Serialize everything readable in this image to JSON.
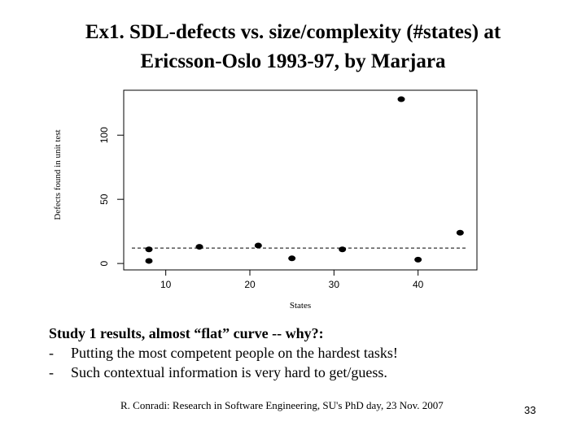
{
  "slide": {
    "title_line1": "Ex1. SDL-defects vs. size/complexity (#states) at",
    "title_line2": "Ericsson-Oslo 1993-97, by Marjara",
    "heading": "Study 1 results, almost “flat” curve -- why?:",
    "bullets": [
      "Putting the most competent people on the hardest tasks!",
      "Such contextual information is very hard to get/guess."
    ],
    "bullet_marker": "-",
    "footer": "R. Conradi: Research in Software Engineering, SU's PhD day, 23 Nov. 2007",
    "page_number": "33"
  },
  "chart_data": {
    "type": "scatter",
    "xlabel": "States",
    "ylabel": "Defects found in unit test",
    "xlim": [
      5,
      47
    ],
    "ylim": [
      -5,
      135
    ],
    "x_ticks": [
      10,
      20,
      30,
      40
    ],
    "y_ticks": [
      0,
      50,
      100
    ],
    "grid": false,
    "points": [
      {
        "x": 8,
        "y": 11
      },
      {
        "x": 8,
        "y": 2
      },
      {
        "x": 14,
        "y": 13
      },
      {
        "x": 21,
        "y": 14
      },
      {
        "x": 25,
        "y": 4
      },
      {
        "x": 31,
        "y": 11
      },
      {
        "x": 38,
        "y": 128
      },
      {
        "x": 40,
        "y": 3
      },
      {
        "x": 45,
        "y": 24
      }
    ],
    "reference_line": {
      "style": "dashed",
      "y": 12
    }
  }
}
